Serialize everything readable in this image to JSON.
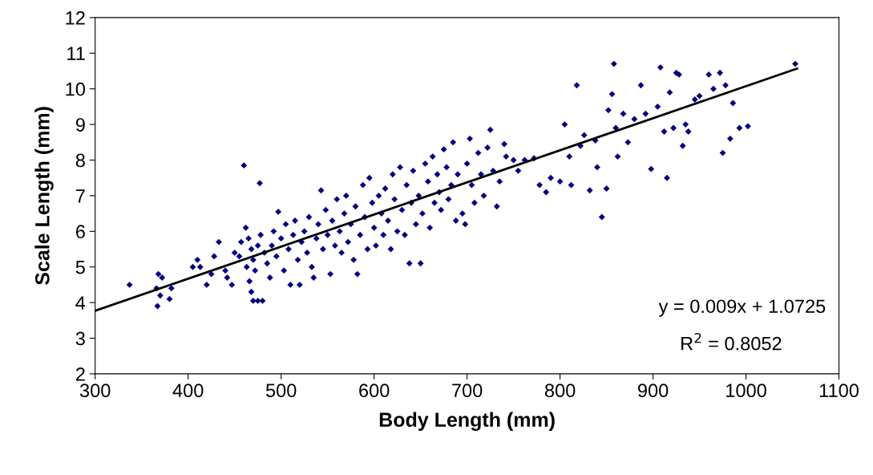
{
  "chart_data": {
    "type": "scatter",
    "xlabel": "Body Length (mm)",
    "ylabel": "Scale Length (mm)",
    "xlim": [
      300,
      1100
    ],
    "xticks": [
      300,
      400,
      500,
      600,
      700,
      800,
      900,
      1000,
      1100
    ],
    "ylim": [
      2,
      12
    ],
    "yticks": [
      2,
      3,
      4,
      5,
      6,
      7,
      8,
      9,
      10,
      11,
      12
    ],
    "grid": false,
    "legend": false,
    "annotations": [
      "y = 0.009x + 1.0725",
      "R$^{2}$ = 0.8052"
    ],
    "series": [
      {
        "marker": "diamond",
        "color": "#000080",
        "x": [
          337,
          366,
          367,
          370,
          368,
          372,
          380,
          382,
          405,
          410,
          413,
          420,
          425,
          428,
          433,
          440,
          442,
          447,
          450,
          455,
          457,
          460,
          477,
          462,
          465,
          468,
          470,
          472,
          466,
          468,
          470,
          475,
          480,
          463,
          475,
          478,
          482,
          485,
          488,
          490,
          492,
          495,
          497,
          500,
          503,
          505,
          508,
          510,
          513,
          515,
          518,
          520,
          522,
          525,
          528,
          530,
          533,
          535,
          538,
          540,
          543,
          545,
          548,
          550,
          553,
          555,
          558,
          560,
          563,
          565,
          568,
          570,
          572,
          575,
          578,
          580,
          582,
          585,
          588,
          590,
          593,
          595,
          598,
          600,
          602,
          605,
          608,
          610,
          612,
          615,
          618,
          620,
          622,
          625,
          628,
          630,
          633,
          635,
          638,
          640,
          642,
          645,
          648,
          650,
          652,
          655,
          658,
          660,
          663,
          665,
          668,
          670,
          672,
          675,
          678,
          680,
          683,
          685,
          688,
          690,
          695,
          698,
          700,
          703,
          705,
          708,
          712,
          715,
          718,
          722,
          725,
          728,
          732,
          735,
          740,
          742,
          750,
          755,
          762,
          772,
          778,
          785,
          790,
          800,
          805,
          810,
          812,
          818,
          822,
          826,
          832,
          838,
          840,
          845,
          850,
          852,
          856,
          858,
          860,
          862,
          868,
          873,
          880,
          887,
          892,
          898,
          905,
          908,
          912,
          915,
          918,
          922,
          925,
          928,
          932,
          935,
          938,
          945,
          950,
          960,
          965,
          972,
          975,
          978,
          983,
          986,
          993,
          1002,
          1053
        ],
        "values": [
          4.5,
          4.4,
          3.9,
          4.2,
          4.8,
          4.7,
          4.1,
          4.4,
          5.0,
          5.2,
          5.0,
          4.5,
          4.8,
          5.3,
          5.7,
          4.9,
          4.7,
          4.5,
          5.4,
          5.3,
          5.7,
          7.85,
          7.35,
          6.1,
          5.8,
          5.5,
          5.2,
          4.9,
          4.6,
          4.3,
          4.05,
          4.05,
          4.05,
          5.0,
          5.6,
          5.9,
          5.4,
          5.1,
          4.7,
          5.6,
          6.0,
          5.3,
          6.55,
          5.8,
          4.9,
          6.2,
          5.5,
          4.5,
          5.9,
          6.3,
          5.2,
          4.5,
          5.7,
          6.0,
          5.4,
          6.4,
          5.0,
          4.7,
          5.8,
          6.2,
          7.15,
          5.5,
          6.6,
          5.9,
          4.8,
          6.3,
          5.6,
          6.9,
          6.0,
          5.4,
          6.5,
          7.0,
          5.7,
          6.2,
          5.2,
          6.7,
          4.8,
          5.9,
          7.3,
          6.4,
          5.5,
          7.5,
          6.8,
          6.1,
          5.6,
          7.0,
          6.5,
          5.9,
          7.2,
          6.3,
          5.5,
          7.6,
          6.9,
          6.0,
          7.8,
          6.6,
          5.9,
          7.3,
          5.1,
          6.8,
          7.7,
          6.2,
          7.0,
          5.1,
          6.5,
          7.9,
          7.4,
          6.1,
          8.1,
          6.8,
          7.6,
          7.1,
          6.6,
          8.3,
          7.8,
          6.9,
          7.3,
          8.5,
          6.3,
          7.6,
          6.5,
          6.2,
          7.9,
          8.6,
          7.3,
          6.8,
          8.2,
          7.6,
          7.0,
          8.35,
          8.85,
          7.7,
          6.7,
          7.4,
          8.45,
          8.1,
          8.0,
          7.7,
          8.0,
          8.05,
          7.3,
          7.1,
          7.5,
          7.4,
          9.0,
          8.1,
          7.3,
          10.1,
          8.4,
          8.7,
          7.15,
          8.55,
          7.8,
          6.4,
          7.2,
          9.4,
          9.85,
          10.7,
          8.9,
          8.1,
          9.3,
          8.5,
          9.15,
          10.1,
          9.3,
          7.75,
          9.5,
          10.6,
          8.8,
          7.5,
          9.9,
          8.9,
          10.45,
          10.4,
          8.4,
          9.0,
          8.8,
          9.7,
          9.8,
          10.4,
          10.0,
          10.45,
          8.2,
          10.1,
          8.6,
          9.6,
          8.9,
          8.95,
          10.7
        ]
      },
      {
        "type": "line",
        "color": "#000000",
        "x": [
          300,
          1055
        ],
        "values": [
          3.77,
          10.57
        ]
      }
    ]
  }
}
